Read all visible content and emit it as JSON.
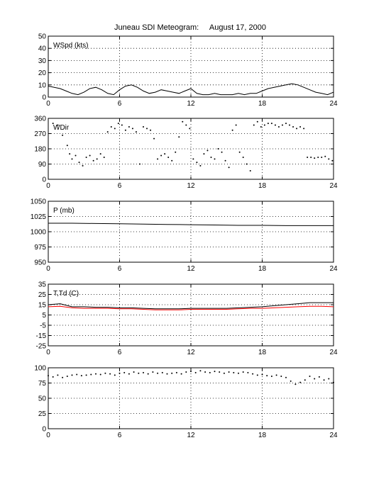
{
  "title": "Juneau SDI Meteogram:     August 17, 2000",
  "chart_data": [
    {
      "type": "line",
      "label": "WSpd (kts)",
      "xlim": [
        0,
        24
      ],
      "ylim": [
        0,
        50
      ],
      "xticks": [
        0,
        6,
        12,
        18,
        24
      ],
      "yticks": [
        0,
        10,
        20,
        30,
        40,
        50
      ],
      "grid": true,
      "series": [
        {
          "color": "#000000",
          "x": [
            0,
            0.5,
            1,
            1.5,
            2,
            2.5,
            3,
            3.5,
            4,
            4.5,
            5,
            5.5,
            6,
            6.5,
            7,
            7.5,
            8,
            8.5,
            9,
            9.5,
            10,
            10.5,
            11,
            11.5,
            12,
            12.5,
            13,
            13.5,
            14,
            14.5,
            15,
            15.5,
            16,
            16.5,
            17,
            17.5,
            18,
            18.5,
            19,
            19.5,
            20,
            20.5,
            21,
            21.5,
            22,
            22.5,
            23,
            23.5,
            24
          ],
          "y": [
            9,
            8,
            7,
            5,
            3,
            2,
            4,
            7,
            8,
            6,
            3,
            2,
            6,
            9,
            10,
            8,
            5,
            3,
            4,
            6,
            5,
            4,
            3,
            5,
            7,
            3,
            2,
            2,
            3,
            2,
            2,
            2,
            3,
            2,
            3,
            3,
            5,
            7,
            8,
            9,
            10,
            11,
            10,
            8,
            6,
            4,
            3,
            2,
            4
          ]
        }
      ]
    },
    {
      "type": "scatter",
      "label": "WDir",
      "xlim": [
        0,
        24
      ],
      "ylim": [
        0,
        360
      ],
      "xticks": [
        0,
        6,
        12,
        18,
        24
      ],
      "yticks": [
        0,
        90,
        180,
        270,
        360
      ],
      "grid": true,
      "series": [
        {
          "color": "#000000",
          "x": [
            0.4,
            0.8,
            1.2,
            1.6,
            1.8,
            2.0,
            2.3,
            2.6,
            2.9,
            3.2,
            3.5,
            3.8,
            4.1,
            4.4,
            4.7,
            5.0,
            5.3,
            5.6,
            5.9,
            6.2,
            6.5,
            6.8,
            7.1,
            7.4,
            7.7,
            8.0,
            8.3,
            8.6,
            8.9,
            9.2,
            9.5,
            9.8,
            10.1,
            10.4,
            10.7,
            11.0,
            11.3,
            11.6,
            11.9,
            12.2,
            12.5,
            12.8,
            13.1,
            13.4,
            13.7,
            14.0,
            14.3,
            14.6,
            14.9,
            15.2,
            15.5,
            15.8,
            16.1,
            16.4,
            16.7,
            17.0,
            17.3,
            17.6,
            17.9,
            18.2,
            18.5,
            18.8,
            19.1,
            19.4,
            19.7,
            20.0,
            20.3,
            20.6,
            20.9,
            21.2,
            21.5,
            21.8,
            22.1,
            22.4,
            22.7,
            23.0,
            23.3,
            23.6,
            23.9
          ],
          "y": [
            330,
            320,
            260,
            200,
            150,
            120,
            140,
            100,
            80,
            130,
            140,
            110,
            120,
            150,
            130,
            280,
            310,
            300,
            330,
            320,
            290,
            310,
            300,
            280,
            90,
            310,
            300,
            290,
            240,
            120,
            140,
            150,
            130,
            110,
            160,
            250,
            340,
            320,
            300,
            120,
            100,
            80,
            150,
            170,
            130,
            120,
            180,
            160,
            110,
            70,
            290,
            320,
            160,
            130,
            90,
            50,
            320,
            340,
            310,
            320,
            330,
            330,
            320,
            310,
            320,
            330,
            320,
            310,
            300,
            310,
            300,
            130,
            130,
            125,
            130,
            130,
            135,
            120,
            110
          ]
        }
      ]
    },
    {
      "type": "line",
      "label": "P (mb)",
      "xlim": [
        0,
        24
      ],
      "ylim": [
        950,
        1050
      ],
      "xticks": [
        0,
        6,
        12,
        18,
        24
      ],
      "yticks": [
        950,
        975,
        1000,
        1025,
        1050
      ],
      "grid": true,
      "series": [
        {
          "color": "#000000",
          "x": [
            0,
            2,
            4,
            6,
            8,
            10,
            12,
            14,
            16,
            18,
            20,
            22,
            24
          ],
          "y": [
            1014,
            1014,
            1013.5,
            1013,
            1012.5,
            1012,
            1011.5,
            1011,
            1010.5,
            1010.5,
            1010,
            1010,
            1010
          ]
        }
      ]
    },
    {
      "type": "line",
      "label": "T,Td (C)",
      "xlim": [
        0,
        24
      ],
      "ylim": [
        -25,
        35
      ],
      "xticks": [
        0,
        6,
        12,
        18,
        24
      ],
      "yticks": [
        -25,
        -15,
        -5,
        5,
        15,
        25,
        35
      ],
      "grid": true,
      "series": [
        {
          "color": "#000000",
          "x": [
            0,
            1,
            2,
            3,
            4,
            5,
            6,
            7,
            8,
            9,
            10,
            11,
            12,
            13,
            14,
            15,
            16,
            17,
            18,
            19,
            20,
            21,
            22,
            23,
            24
          ],
          "y": [
            15,
            16,
            13,
            13,
            12.5,
            12.5,
            12,
            12,
            11.5,
            11,
            11,
            11,
            11.5,
            11.5,
            11.5,
            11.5,
            12,
            12.5,
            13,
            14,
            15,
            16,
            17,
            17,
            17
          ]
        },
        {
          "color": "#ff0000",
          "x": [
            0,
            1,
            2,
            3,
            4,
            5,
            6,
            7,
            8,
            9,
            10,
            11,
            12,
            13,
            14,
            15,
            16,
            17,
            18,
            19,
            20,
            21,
            22,
            23,
            24
          ],
          "y": [
            13,
            13.5,
            12,
            11.5,
            11.5,
            11.5,
            11,
            11,
            10.5,
            10,
            10,
            10,
            10.5,
            10.5,
            10.5,
            10.5,
            11,
            11.5,
            11.5,
            12,
            12.5,
            13,
            13.5,
            13.5,
            13
          ]
        }
      ]
    },
    {
      "type": "scatter",
      "label": "",
      "xlim": [
        0,
        24
      ],
      "ylim": [
        0,
        100
      ],
      "xticks": [
        0,
        6,
        12,
        18,
        24
      ],
      "yticks": [
        0,
        25,
        50,
        75,
        100
      ],
      "grid": true,
      "series": [
        {
          "color": "#000000",
          "x": [
            0,
            0.4,
            0.8,
            1.2,
            1.6,
            2.0,
            2.4,
            2.8,
            3.2,
            3.6,
            4.0,
            4.4,
            4.8,
            5.2,
            5.6,
            6.0,
            6.4,
            6.8,
            7.2,
            7.6,
            8.0,
            8.4,
            8.8,
            9.2,
            9.6,
            10.0,
            10.4,
            10.8,
            11.2,
            11.6,
            12.0,
            12.4,
            12.8,
            13.2,
            13.6,
            14.0,
            14.4,
            14.8,
            15.2,
            15.6,
            16.0,
            16.4,
            16.8,
            17.2,
            17.6,
            18.0,
            18.4,
            18.8,
            19.2,
            19.6,
            20.0,
            20.4,
            20.8,
            21.2,
            21.6,
            22.0,
            22.4,
            22.8,
            23.2,
            23.6,
            24.0
          ],
          "y": [
            87,
            85,
            88,
            84,
            86,
            88,
            89,
            87,
            88,
            89,
            90,
            89,
            91,
            90,
            88,
            91,
            92,
            90,
            93,
            91,
            92,
            90,
            93,
            91,
            92,
            90,
            91,
            92,
            90,
            93,
            94,
            92,
            95,
            93,
            92,
            94,
            93,
            91,
            93,
            92,
            91,
            93,
            92,
            90,
            88,
            89,
            87,
            86,
            88,
            86,
            84,
            78,
            73,
            76,
            80,
            86,
            82,
            85,
            80,
            82,
            76
          ]
        }
      ]
    }
  ]
}
